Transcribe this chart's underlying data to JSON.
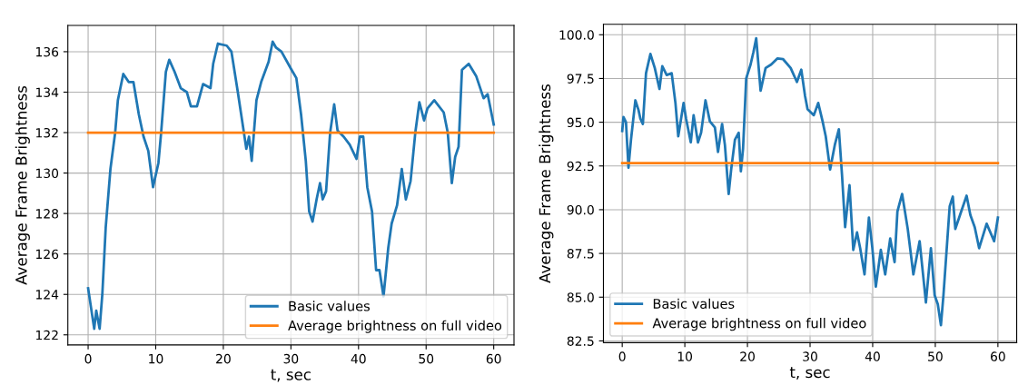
{
  "chart_data": [
    {
      "type": "line",
      "xlabel": "t, sec",
      "ylabel": "Average Frame Brightness",
      "xlim": [
        -3,
        63
      ],
      "ylim": [
        121.5,
        137.3
      ],
      "xticks": [
        0,
        10,
        20,
        30,
        40,
        50,
        60
      ],
      "yticks": [
        122,
        124,
        126,
        128,
        130,
        132,
        134,
        136
      ],
      "grid": true,
      "legend": "bottom right",
      "series": [
        {
          "name": "Basic values",
          "color": "#1f77b4",
          "x": [
            0,
            0.9,
            1.2,
            1.7,
            2.1,
            2.6,
            3.3,
            4.0,
            4.4,
            5.2,
            6.0,
            6.7,
            7.5,
            8.2,
            8.9,
            9.6,
            10.4,
            10.8,
            11.5,
            12.0,
            12.8,
            13.7,
            14.6,
            15.2,
            16.1,
            17.0,
            18.1,
            18.5,
            19.2,
            20.5,
            21.2,
            22.1,
            23.0,
            23.4,
            23.8,
            24.2,
            24.9,
            25.6,
            26.7,
            27.3,
            27.8,
            28.6,
            30.1,
            30.8,
            31.5,
            32.2,
            32.7,
            33.2,
            33.8,
            34.3,
            34.7,
            35.2,
            35.8,
            36.4,
            36.9,
            37.8,
            38.7,
            39.7,
            40.2,
            40.7,
            41.3,
            42.0,
            42.6,
            43.1,
            43.7,
            44.4,
            44.9,
            45.7,
            46.4,
            47.0,
            47.7,
            48.4,
            49.0,
            49.7,
            50.2,
            51.2,
            52.6,
            53.2,
            53.8,
            54.3,
            54.8,
            55.3,
            56.3,
            57.4,
            58.5,
            59.1,
            60.0
          ],
          "values": [
            124.3,
            122.3,
            123.2,
            122.3,
            124.0,
            127.3,
            130.2,
            132.0,
            133.6,
            134.9,
            134.5,
            134.5,
            132.9,
            131.8,
            131.1,
            129.3,
            130.5,
            132.0,
            135.0,
            135.6,
            135.0,
            134.2,
            134.0,
            133.3,
            133.3,
            134.4,
            134.2,
            135.4,
            136.4,
            136.3,
            136.0,
            134.1,
            132.1,
            131.2,
            131.8,
            130.6,
            133.6,
            134.5,
            135.5,
            136.5,
            136.2,
            136.0,
            135.1,
            134.7,
            132.9,
            130.6,
            128.1,
            127.6,
            128.7,
            129.5,
            128.7,
            129.1,
            132.0,
            133.4,
            132.1,
            131.8,
            131.4,
            130.7,
            131.8,
            131.8,
            129.3,
            128.1,
            125.2,
            125.2,
            123.9,
            126.3,
            127.5,
            128.4,
            130.2,
            128.7,
            129.6,
            132.0,
            133.5,
            132.6,
            133.2,
            133.6,
            133.0,
            132.0,
            129.5,
            130.8,
            131.3,
            135.1,
            135.4,
            134.8,
            133.7,
            133.9,
            132.4
          ]
        },
        {
          "name": "Average brightness on full video",
          "color": "#ff7f0e",
          "x": [
            0,
            60
          ],
          "values": [
            132.0,
            132.0
          ]
        }
      ]
    },
    {
      "type": "line",
      "xlabel": "t, sec",
      "ylabel": "Average Frame Brightness",
      "xlim": [
        -3,
        63
      ],
      "ylim": [
        82.4,
        100.6
      ],
      "xticks": [
        0,
        10,
        20,
        30,
        40,
        50,
        60
      ],
      "yticks": [
        {
          "value": 82.5,
          "label": "82.5"
        },
        {
          "value": 85,
          "label": "85.0"
        },
        {
          "value": 87.5,
          "label": "87.5"
        },
        {
          "value": 90,
          "label": "90.0"
        },
        {
          "value": 92.5,
          "label": "92.5"
        },
        {
          "value": 95,
          "label": "95.0"
        },
        {
          "value": 97.5,
          "label": "97.5"
        },
        {
          "value": 100,
          "label": "100.0"
        }
      ],
      "grid": true,
      "legend": "bottom left",
      "series": [
        {
          "name": "Basic values",
          "color": "#1f77b4",
          "x": [
            0,
            0.2,
            0.6,
            1.0,
            1.4,
            2.1,
            2.6,
            2.9,
            3.3,
            3.8,
            4.5,
            5.2,
            5.95,
            6.4,
            7.1,
            7.9,
            8.5,
            8.95,
            9.8,
            10.2,
            10.95,
            11.4,
            12.1,
            12.6,
            13.3,
            14.0,
            14.8,
            15.3,
            15.95,
            16.4,
            17.0,
            17.4,
            18.0,
            18.6,
            18.95,
            19.3,
            19.8,
            20.5,
            20.95,
            21.4,
            22.1,
            22.9,
            23.8,
            24.8,
            25.7,
            26.9,
            27.9,
            28.6,
            29.2,
            29.6,
            30.6,
            31.3,
            32.0,
            32.5,
            33.2,
            33.95,
            34.6,
            35.1,
            35.6,
            36.3,
            36.9,
            37.5,
            38.0,
            38.7,
            39.4,
            39.95,
            40.5,
            41.3,
            42.0,
            42.8,
            43.5,
            43.95,
            44.7,
            45.6,
            46.5,
            47.5,
            48.5,
            49.3,
            49.9,
            50.4,
            50.9,
            51.3,
            52.3,
            52.8,
            53.2,
            53.95,
            55.0,
            55.6,
            56.3,
            57.0,
            58.2,
            59.4,
            60.0
          ],
          "values": [
            94.5,
            95.3,
            95.0,
            92.4,
            94.0,
            96.25,
            95.7,
            95.2,
            94.9,
            97.8,
            98.9,
            98.1,
            96.9,
            98.2,
            97.7,
            97.8,
            96.1,
            94.2,
            96.1,
            95.2,
            93.85,
            95.4,
            93.85,
            94.4,
            96.25,
            95.05,
            94.7,
            93.3,
            94.9,
            93.7,
            90.9,
            92.3,
            94.0,
            94.4,
            92.2,
            93.5,
            97.5,
            98.3,
            99.0,
            99.8,
            96.8,
            98.1,
            98.3,
            98.65,
            98.6,
            98.1,
            97.3,
            98.0,
            96.5,
            95.75,
            95.4,
            96.1,
            95.05,
            94.2,
            92.3,
            93.7,
            94.6,
            92.0,
            89.0,
            91.4,
            87.7,
            88.7,
            87.8,
            86.3,
            89.55,
            87.8,
            85.6,
            87.7,
            86.3,
            88.35,
            87.0,
            89.9,
            90.9,
            88.9,
            86.3,
            88.2,
            84.7,
            87.8,
            85.1,
            84.6,
            83.4,
            85.1,
            90.2,
            90.75,
            88.9,
            89.7,
            90.8,
            89.7,
            89.0,
            87.8,
            89.2,
            88.2,
            89.55
          ]
        },
        {
          "name": "Average brightness on full video",
          "color": "#ff7f0e",
          "x": [
            0,
            60
          ],
          "values": [
            92.66,
            92.66
          ]
        }
      ]
    }
  ]
}
